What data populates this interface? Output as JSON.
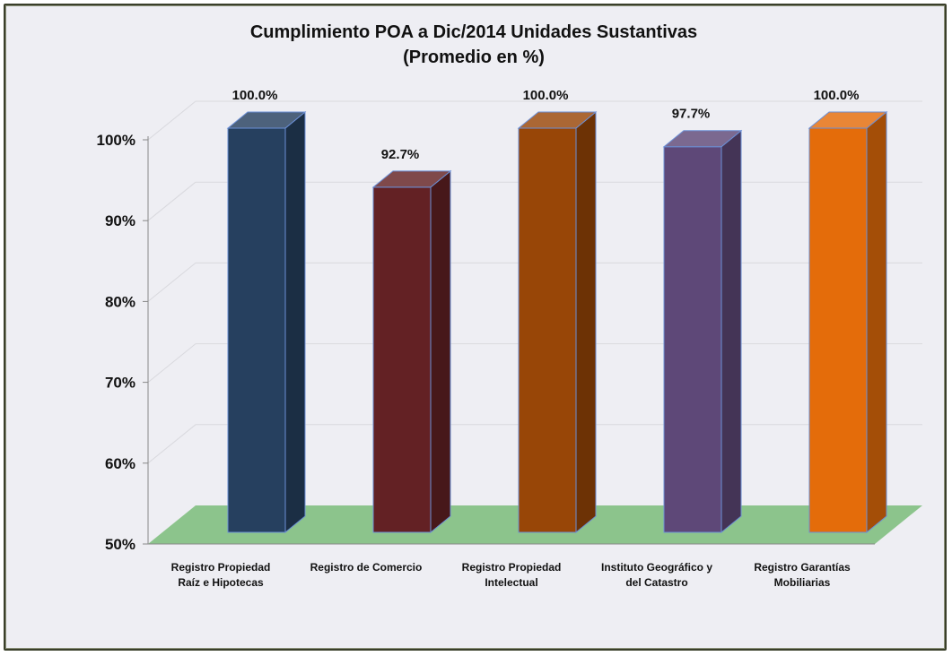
{
  "chart_data": {
    "type": "bar",
    "title": "Cumplimiento POA a Dic/2014 Unidades Sustantivas",
    "subtitle": "(Promedio en %)",
    "categories": [
      [
        "Registro Propiedad",
        "Raíz e Hipotecas"
      ],
      [
        "Registro de Comercio"
      ],
      [
        "Registro Propiedad",
        "Intelectual"
      ],
      [
        "Instituto Geográfico y",
        "del Catastro"
      ],
      [
        "Registro Garantías",
        "Mobiliarias"
      ]
    ],
    "values": [
      100.0,
      92.7,
      100.0,
      97.7,
      100.0
    ],
    "value_labels": [
      "100.0%",
      "92.7%",
      "100.0%",
      "97.7%",
      "100.0%"
    ],
    "colors": [
      "#26405f",
      "#632124",
      "#984607",
      "#5e4878",
      "#e46c0a"
    ],
    "ylim": [
      50,
      100
    ],
    "yticks": [
      50,
      60,
      70,
      80,
      90,
      100
    ],
    "ytick_labels": [
      "50%",
      "60%",
      "70%",
      "80%",
      "90%",
      "100%"
    ],
    "grid": true,
    "three_d": true,
    "floor_color": "#8cc48c",
    "legend": "none"
  }
}
